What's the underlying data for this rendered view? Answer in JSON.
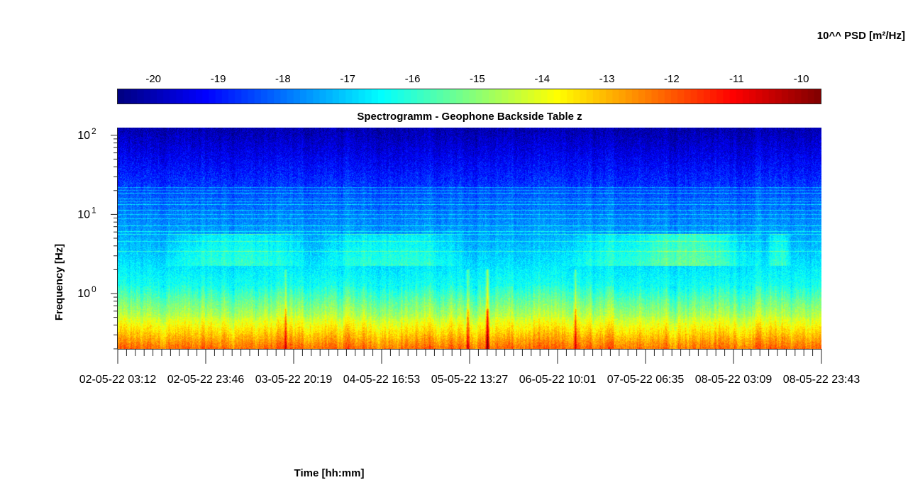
{
  "chart_data": {
    "type": "heatmap",
    "title": "Spectrogramm - Geophone Backside Table z",
    "xlabel": "Time [hh:mm]",
    "ylabel": "Frequency [Hz]",
    "y_scale": "log",
    "ylim": [
      0.2,
      125
    ],
    "y_ticks": [
      {
        "value": 1,
        "label": "10",
        "exp": "0"
      },
      {
        "value": 10,
        "label": "10",
        "exp": "1"
      },
      {
        "value": 100,
        "label": "10",
        "exp": "2"
      }
    ],
    "x_tick_labels": [
      "02-05-22  03:12",
      "02-05-22  23:46",
      "03-05-22  20:19",
      "04-05-22  16:53",
      "05-05-22  13:27",
      "06-05-22  10:01",
      "07-05-22  06:35",
      "08-05-22  03:09",
      "08-05-22  23:43"
    ],
    "colorbar": {
      "label": "10^^ PSD [m²/Hz]",
      "range": [
        -20.55,
        -9.7
      ],
      "ticks": [
        "-20",
        "-19",
        "-18",
        "-17",
        "-16",
        "-15",
        "-14",
        "-13",
        "-12",
        "-11",
        "-10"
      ],
      "tick_values": [
        -20,
        -19,
        -18,
        -17,
        -16,
        -15,
        -14,
        -13,
        -12,
        -11,
        -10
      ],
      "colormap": "jet"
    },
    "grid": false
  }
}
